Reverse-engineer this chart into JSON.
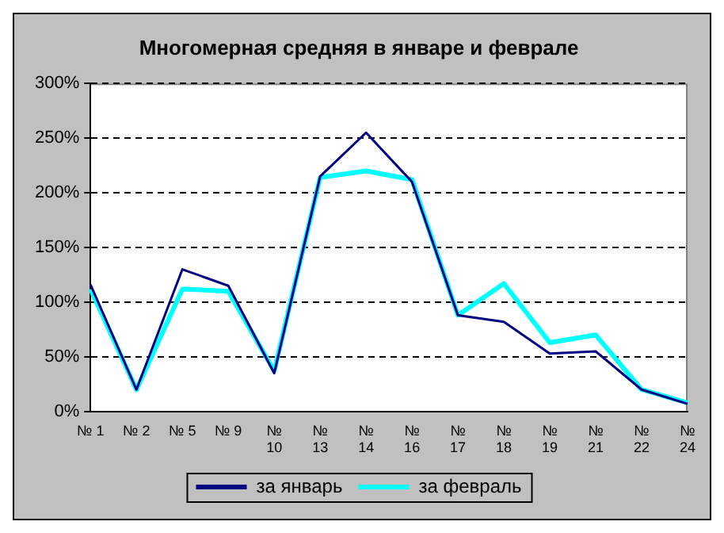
{
  "chart_data": {
    "type": "line",
    "title": "Многомерная средняя в январе и феврале",
    "categories": [
      "№ 1",
      "№ 2",
      "№ 5",
      "№ 9",
      "№ 10",
      "№ 13",
      "№ 14",
      "№ 16",
      "№ 17",
      "№ 18",
      "№ 19",
      "№ 21",
      "№ 22",
      "№ 24"
    ],
    "series": [
      {
        "name": "за январь",
        "color": "#000080",
        "values": [
          116,
          20,
          130,
          115,
          35,
          215,
          255,
          210,
          88,
          82,
          53,
          55,
          20,
          7
        ]
      },
      {
        "name": "за февраль",
        "color": "#00ffff",
        "values": [
          112,
          20,
          112,
          110,
          37,
          214,
          220,
          212,
          88,
          117,
          63,
          70,
          20,
          8
        ]
      }
    ],
    "ylim": [
      0,
      300
    ],
    "yticks": [
      {
        "value": 0,
        "label": "0%"
      },
      {
        "value": 50,
        "label": "50%"
      },
      {
        "value": 100,
        "label": "100%"
      },
      {
        "value": 150,
        "label": "150%"
      },
      {
        "value": 200,
        "label": "200%"
      },
      {
        "value": 250,
        "label": "250%"
      },
      {
        "value": 300,
        "label": "300%"
      }
    ],
    "grid": "y",
    "legend": "bottom",
    "marker": "none",
    "line_style": "solid"
  }
}
